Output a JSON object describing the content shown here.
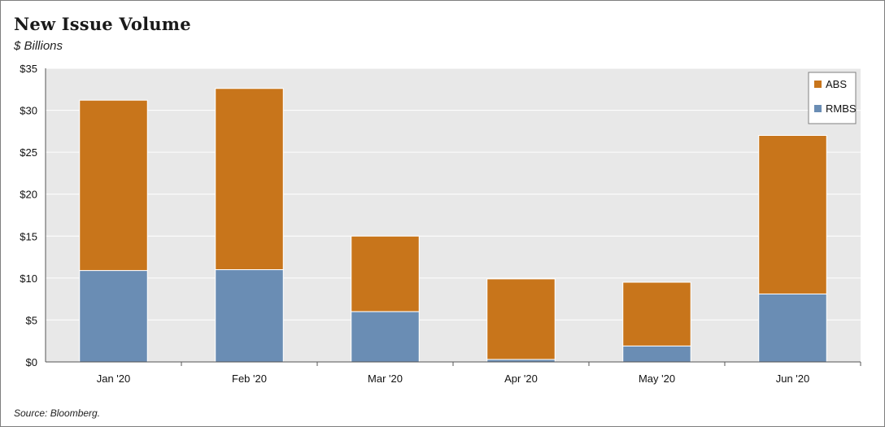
{
  "title": "New Issue Volume",
  "subtitle": "$ Billions",
  "source": "Source: Bloomberg.",
  "chart_data": {
    "type": "bar",
    "stacked": true,
    "categories": [
      "Jan '20",
      "Feb '20",
      "Mar '20",
      "Apr '20",
      "May '20",
      "Jun '20"
    ],
    "series": [
      {
        "name": "RMBS",
        "values": [
          10.9,
          11.0,
          6.0,
          0.3,
          1.9,
          8.1
        ],
        "color": "#6a8db4"
      },
      {
        "name": "ABS",
        "values": [
          20.3,
          21.6,
          9.0,
          9.6,
          7.6,
          18.9
        ],
        "color": "#c8751b"
      }
    ],
    "ylim": [
      0,
      35
    ],
    "yticks": [
      0,
      5,
      10,
      15,
      20,
      25,
      30,
      35
    ],
    "ytick_labels": [
      "$0",
      "$5",
      "$10",
      "$15",
      "$20",
      "$25",
      "$30",
      "$35"
    ],
    "legend": {
      "placement": "top-right",
      "order": [
        "ABS",
        "RMBS"
      ]
    },
    "grid": true,
    "plot_background": "#e8e8e8"
  }
}
